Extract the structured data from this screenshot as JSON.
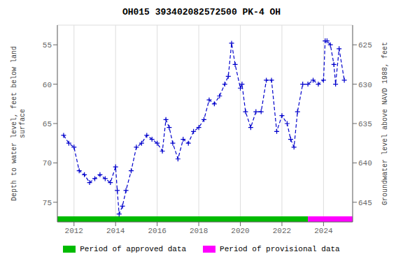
{
  "chart_data": {
    "type": "line",
    "title": "OH015 393402082572500 PK-4 OH",
    "ylabel": "Depth to water level, feet below land\nsurface",
    "y2label": "Groundwater level above NAVD 1988, feet",
    "x": [
      2011.5,
      2011.75,
      2012.0,
      2012.25,
      2012.5,
      2012.75,
      2013.0,
      2013.25,
      2013.5,
      2013.75,
      2014.0,
      2014.08,
      2014.17,
      2014.33,
      2014.5,
      2014.75,
      2015.0,
      2015.25,
      2015.5,
      2015.75,
      2016.0,
      2016.25,
      2016.42,
      2016.58,
      2016.75,
      2017.0,
      2017.25,
      2017.5,
      2017.75,
      2018.0,
      2018.25,
      2018.5,
      2018.75,
      2019.0,
      2019.25,
      2019.42,
      2019.58,
      2019.75,
      2020.0,
      2020.08,
      2020.25,
      2020.5,
      2020.75,
      2021.0,
      2021.25,
      2021.5,
      2021.75,
      2022.0,
      2022.25,
      2022.42,
      2022.58,
      2022.75,
      2023.0,
      2023.25,
      2023.5,
      2023.75,
      2024.0,
      2024.08,
      2024.17,
      2024.33,
      2024.5,
      2024.58,
      2024.75,
      2025.0
    ],
    "series": [
      {
        "color": "#0000cc",
        "line_style": "dashed",
        "marker": "plus",
        "values": [
          66.5,
          67.5,
          68.0,
          71.0,
          71.5,
          72.5,
          72.0,
          71.5,
          72.0,
          72.5,
          70.5,
          73.5,
          76.5,
          75.5,
          73.5,
          71.0,
          68.0,
          67.5,
          66.5,
          67.0,
          67.5,
          68.5,
          64.5,
          65.5,
          67.5,
          69.5,
          67.0,
          67.5,
          66.0,
          65.5,
          64.5,
          62.0,
          62.5,
          61.5,
          60.0,
          59.0,
          54.8,
          57.5,
          60.5,
          60.0,
          63.5,
          65.5,
          63.5,
          63.5,
          59.5,
          59.5,
          66.0,
          64.0,
          65.0,
          67.0,
          68.0,
          63.5,
          60.0,
          60.0,
          59.5,
          60.0,
          59.5,
          54.5,
          54.5,
          55.0,
          57.5,
          60.0,
          55.5,
          59.5
        ]
      }
    ],
    "xlim": [
      2011.2,
      2025.4
    ],
    "xticks": [
      2012,
      2014,
      2016,
      2018,
      2020,
      2022,
      2024
    ],
    "ylim": [
      77.5,
      52.5
    ],
    "yticks": [
      55,
      60,
      65,
      70,
      75
    ],
    "y2lim": [
      647.5,
      622.5
    ],
    "y2ticks": [
      625,
      630,
      635,
      640,
      645
    ],
    "grid": true,
    "periods": [
      {
        "name": "Period of approved data",
        "color": "#00bb00",
        "start": 2011.2,
        "end": 2023.25
      },
      {
        "name": "Period of provisional data",
        "color": "#ff00ff",
        "start": 2023.25,
        "end": 2025.4
      }
    ]
  }
}
